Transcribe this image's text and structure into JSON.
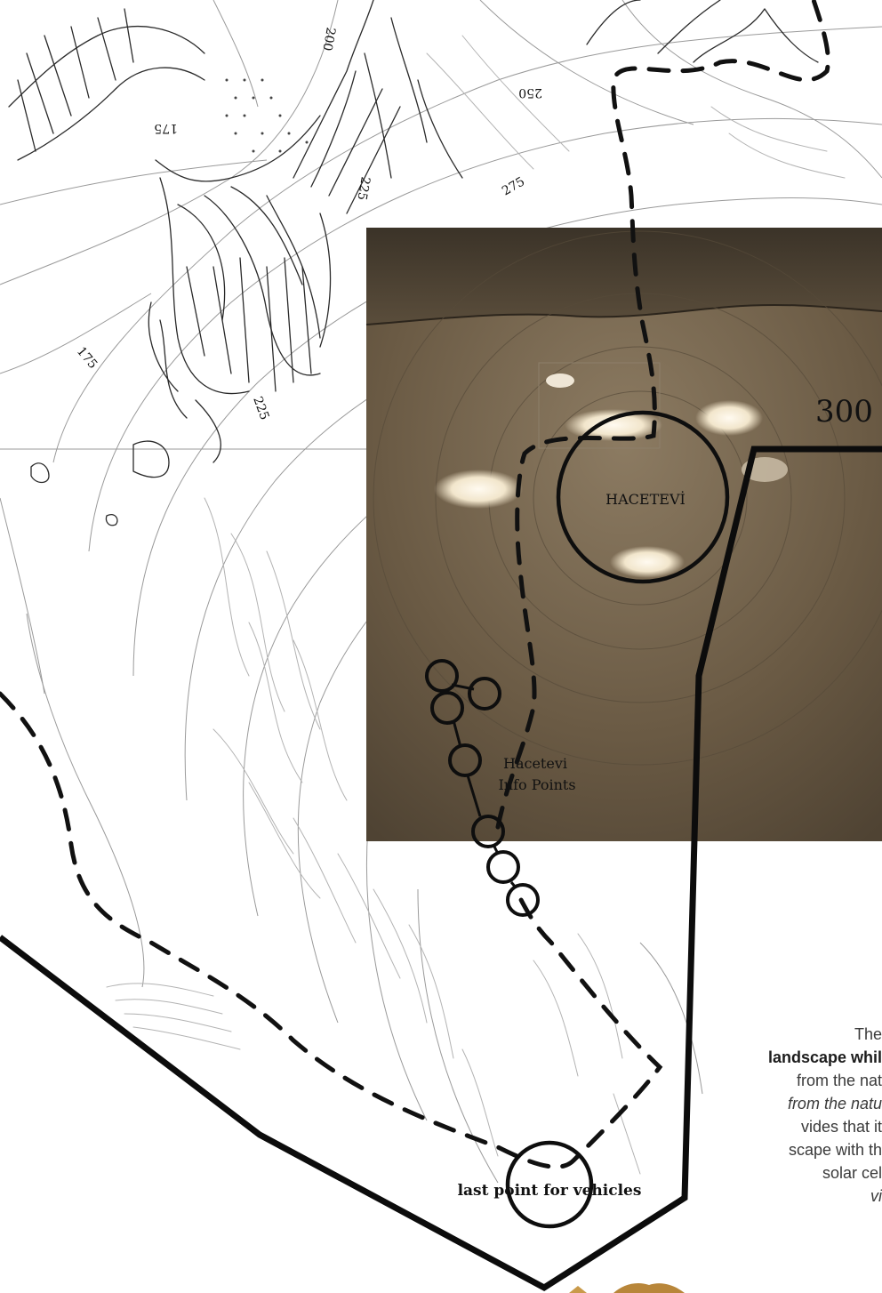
{
  "map": {
    "contour_labels": [
      "200",
      "250",
      "175",
      "225",
      "275",
      "175",
      "225"
    ],
    "elevation_label": "300",
    "place_label": "HACETEVİ",
    "info_points_line1": "Hacetevi",
    "info_points_line2": "Info Points",
    "vehicle_point_label": "last point for vehicles"
  },
  "caption": {
    "lines": [
      "The",
      "landscape whil",
      "from the nat",
      "from the natu",
      "vides that it",
      "scape with th",
      "solar cel",
      "vi"
    ]
  },
  "colors": {
    "photo_tone": "#6e5e48",
    "route": "#111111",
    "boundary": "#0c0c0c",
    "contour": "#9a9a9a"
  }
}
